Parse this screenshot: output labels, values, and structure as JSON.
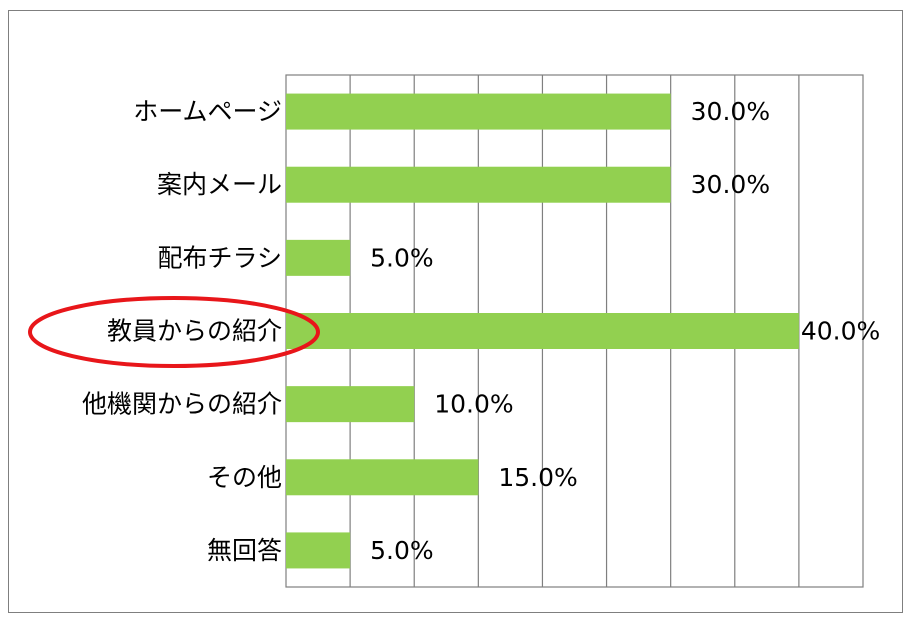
{
  "chart_data": {
    "type": "bar",
    "orientation": "horizontal",
    "categories": [
      "ホームページ",
      "案内メール",
      "配布チラシ",
      "教員からの紹介",
      "他機関からの紹介",
      "その他",
      "無回答"
    ],
    "values": [
      30.0,
      30.0,
      5.0,
      40.0,
      10.0,
      15.0,
      5.0
    ],
    "value_labels": [
      "30.0%",
      "30.0%",
      "5.0%",
      "40.0%",
      "10.0%",
      "15.0%",
      "5.0%"
    ],
    "xlim": [
      0,
      45
    ],
    "grid_step": 5,
    "grid": true,
    "legend": "none",
    "highlighted_category": "教員からの紹介",
    "colors": {
      "bar": "#92d050",
      "grid": "#7f7f7f",
      "highlight": "#e8161a"
    }
  }
}
